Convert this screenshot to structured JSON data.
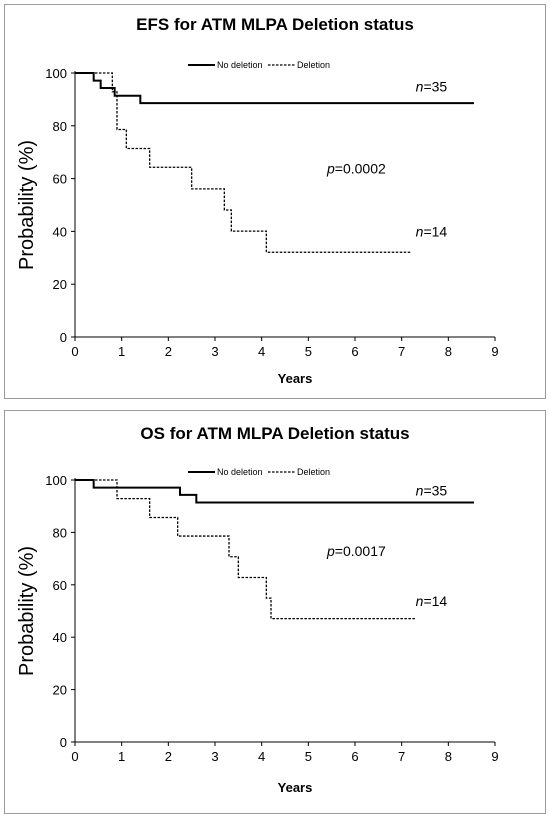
{
  "chart_data": [
    {
      "type": "line",
      "title": "EFS for ATM MLPA Deletion status",
      "xlabel": "Years",
      "ylabel": "Probability (%)",
      "xlim": [
        0,
        9
      ],
      "ylim": [
        0,
        100
      ],
      "xticks": [
        "0",
        "1",
        "2",
        "3",
        "4",
        "5",
        "6",
        "7",
        "8",
        "9"
      ],
      "yticks": [
        "0",
        "20",
        "40",
        "60",
        "80",
        "100"
      ],
      "legend_position": "top-center",
      "series": [
        {
          "name": "No deletion",
          "style": "solid",
          "x": [
            0,
            0.4,
            0.55,
            0.85,
            1.4,
            8.55
          ],
          "y": [
            100,
            97.1,
            94.3,
            91.4,
            88.6,
            88.6
          ]
        },
        {
          "name": "Deletion",
          "style": "dashed",
          "x": [
            0,
            0.8,
            0.9,
            1.1,
            1.6,
            2.5,
            3.2,
            3.35,
            4.1,
            7.2
          ],
          "y": [
            100,
            92.9,
            78.6,
            71.4,
            64.3,
            56.1,
            48.1,
            40.1,
            32.1,
            32.1
          ]
        }
      ],
      "annotations": [
        {
          "prefix": "p",
          "text": "=0.0002",
          "x": 5.4,
          "y": 62
        },
        {
          "prefix": "n",
          "text": "=35",
          "x": 7.3,
          "y": 93
        },
        {
          "prefix": "n",
          "text": "=14",
          "x": 7.3,
          "y": 38
        }
      ]
    },
    {
      "type": "line",
      "title": "OS for ATM MLPA Deletion status",
      "xlabel": "Years",
      "ylabel": "Probability (%)",
      "xlim": [
        0,
        9
      ],
      "ylim": [
        0,
        100
      ],
      "xticks": [
        "0",
        "1",
        "2",
        "3",
        "4",
        "5",
        "6",
        "7",
        "8",
        "9"
      ],
      "yticks": [
        "0",
        "20",
        "40",
        "60",
        "80",
        "100"
      ],
      "legend_position": "top-center",
      "series": [
        {
          "name": "No deletion",
          "style": "solid",
          "x": [
            0,
            0.4,
            2.25,
            2.6,
            8.55
          ],
          "y": [
            100,
            97.1,
            94.3,
            91.4,
            91.4
          ]
        },
        {
          "name": "Deletion",
          "style": "dashed",
          "x": [
            0,
            0.9,
            1.6,
            2.2,
            3.3,
            3.5,
            4.1,
            4.2,
            7.3
          ],
          "y": [
            100,
            92.9,
            85.7,
            78.6,
            70.7,
            62.8,
            54.9,
            47.1,
            47.1
          ]
        }
      ],
      "annotations": [
        {
          "prefix": "p",
          "text": "=0.0017",
          "x": 5.4,
          "y": 71
        },
        {
          "prefix": "n",
          "text": "=35",
          "x": 7.3,
          "y": 94
        },
        {
          "prefix": "n",
          "text": "=14",
          "x": 7.3,
          "y": 52
        }
      ]
    }
  ]
}
